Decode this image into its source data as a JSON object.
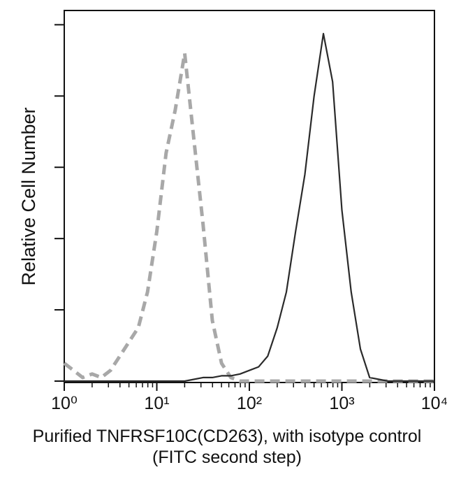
{
  "chart_data": {
    "type": "line",
    "x_label": "Purified TNFRSF10C(CD263), with isotype control",
    "x_label_line2": "(FITC second step)",
    "y_label": "Relative Cell Number",
    "x_log": true,
    "xlim": [
      1,
      10000
    ],
    "xticks": [
      {
        "value": 1,
        "label": "10⁰"
      },
      {
        "value": 10,
        "label": "10¹"
      },
      {
        "value": 100,
        "label": "10²"
      },
      {
        "value": 1000,
        "label": "10³"
      },
      {
        "value": 10000,
        "label": "10⁴"
      }
    ],
    "ylim": [
      0,
      104
    ],
    "yticks": [
      0,
      20,
      40,
      60,
      80,
      100
    ],
    "x": [
      1,
      1.26,
      1.58,
      2,
      2.51,
      3.16,
      3.98,
      5.01,
      6.31,
      7.94,
      10,
      12.6,
      15.8,
      20,
      25.1,
      31.6,
      39.8,
      50.1,
      63.1,
      79.4,
      100,
      126,
      158,
      200,
      251,
      316,
      398,
      501,
      631,
      794,
      1000,
      1259,
      1585,
      1995,
      2512,
      3162,
      3981,
      5012,
      6310,
      7943,
      10000
    ],
    "series": [
      {
        "color": "#a8a8a8",
        "line_style": "dashed",
        "values": [
          5,
          3,
          1,
          2,
          1,
          3,
          7,
          11,
          15,
          25,
          42,
          64,
          76,
          92,
          68,
          44,
          17,
          5,
          1,
          0,
          0,
          0,
          0,
          0,
          0,
          0,
          0,
          0,
          0,
          0,
          0,
          0,
          0,
          0,
          0,
          0,
          0,
          0,
          0,
          0,
          0
        ]
      },
      {
        "color": "#2a2a2a",
        "line_style": "solid",
        "values": [
          0,
          0,
          0,
          0,
          0,
          0,
          0,
          0,
          0,
          0,
          0,
          0,
          0,
          0,
          0.5,
          1,
          1,
          1.5,
          1.5,
          2,
          3,
          4,
          7,
          15,
          25,
          42,
          58,
          80,
          97.5,
          84,
          48,
          25,
          9,
          1,
          0.5,
          0,
          0,
          0,
          0,
          0,
          0
        ]
      }
    ]
  }
}
